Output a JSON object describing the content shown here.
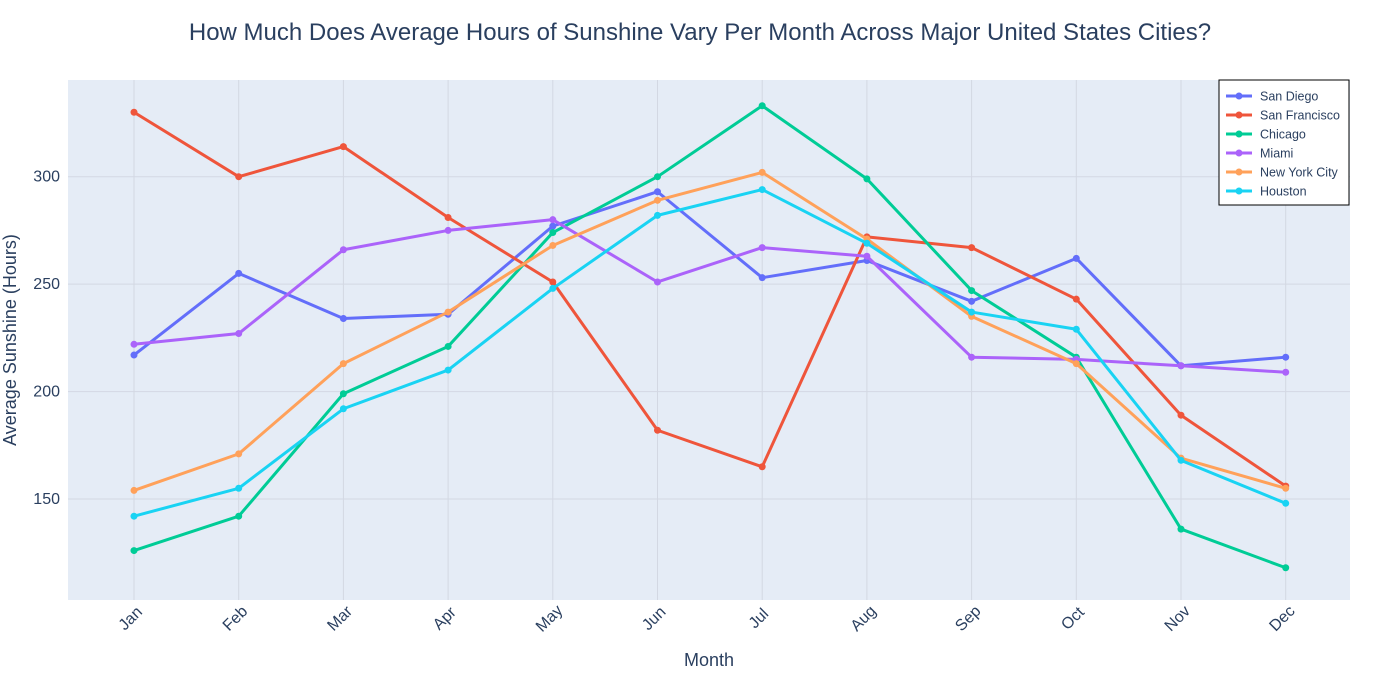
{
  "chart_data": {
    "type": "line",
    "title": "How Much Does Average Hours of Sunshine Vary Per Month Across Major United States Cities?",
    "xlabel": "Month",
    "ylabel": "Average Sunshine (Hours)",
    "categories": [
      "Jan",
      "Feb",
      "Mar",
      "Apr",
      "May",
      "Jun",
      "Jul",
      "Aug",
      "Sep",
      "Oct",
      "Nov",
      "Dec"
    ],
    "yticks": [
      150,
      200,
      250,
      300
    ],
    "ylim": [
      103,
      345
    ],
    "grid": true,
    "legend_position": "top-right",
    "plot_background": "#e5ecf6",
    "series": [
      {
        "name": "San Diego",
        "color": "#636efa",
        "values": [
          217,
          255,
          234,
          236,
          277,
          293,
          253,
          261,
          242,
          262,
          212,
          216
        ]
      },
      {
        "name": "San Francisco",
        "color": "#ef553b",
        "values": [
          330,
          300,
          314,
          281,
          251,
          182,
          165,
          272,
          267,
          243,
          189,
          156
        ]
      },
      {
        "name": "Chicago",
        "color": "#00cc96",
        "values": [
          126,
          142,
          199,
          221,
          274,
          300,
          333,
          299,
          247,
          216,
          136,
          118
        ]
      },
      {
        "name": "Miami",
        "color": "#ab63fa",
        "values": [
          222,
          227,
          266,
          275,
          280,
          251,
          267,
          263,
          216,
          215,
          212,
          209
        ]
      },
      {
        "name": "New York City",
        "color": "#ffa15a",
        "values": [
          154,
          171,
          213,
          237,
          268,
          289,
          302,
          271,
          235,
          213,
          169,
          155
        ]
      },
      {
        "name": "Houston",
        "color": "#19d3f3",
        "values": [
          142,
          155,
          192,
          210,
          248,
          282,
          294,
          269,
          237,
          229,
          168,
          148
        ]
      }
    ]
  }
}
